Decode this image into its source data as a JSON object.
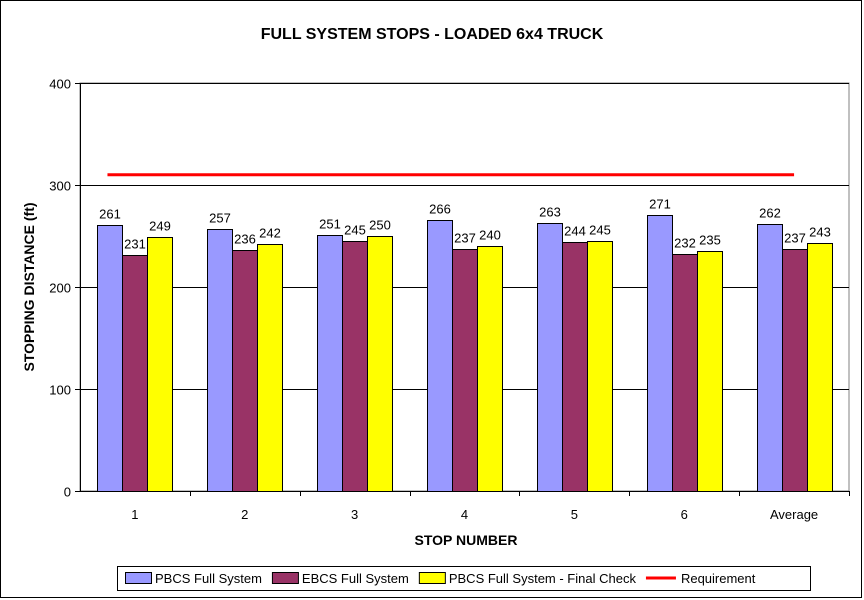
{
  "chart_data": {
    "type": "bar",
    "title": "FULL SYSTEM STOPS - LOADED 6x4 TRUCK",
    "xlabel": "STOP NUMBER",
    "ylabel": "STOPPING DISTANCE (ft)",
    "ylim": [
      0,
      400
    ],
    "yticks": [
      0,
      100,
      200,
      300,
      400
    ],
    "grid": true,
    "legend_position": "bottom",
    "categories": [
      "1",
      "2",
      "3",
      "4",
      "5",
      "6",
      "Average"
    ],
    "series": [
      {
        "name": "PBCS Full System",
        "color": "#9999ff",
        "values": [
          261,
          257,
          251,
          266,
          263,
          271,
          262
        ]
      },
      {
        "name": "EBCS Full System",
        "color": "#993366",
        "values": [
          231,
          236,
          245,
          237,
          244,
          232,
          237
        ]
      },
      {
        "name": "PBCS Full System - Final Check",
        "color": "#ffff00",
        "values": [
          249,
          242,
          250,
          240,
          245,
          235,
          243
        ]
      }
    ],
    "reference_line": {
      "name": "Requirement",
      "color": "#ff0000",
      "value": 310
    }
  }
}
